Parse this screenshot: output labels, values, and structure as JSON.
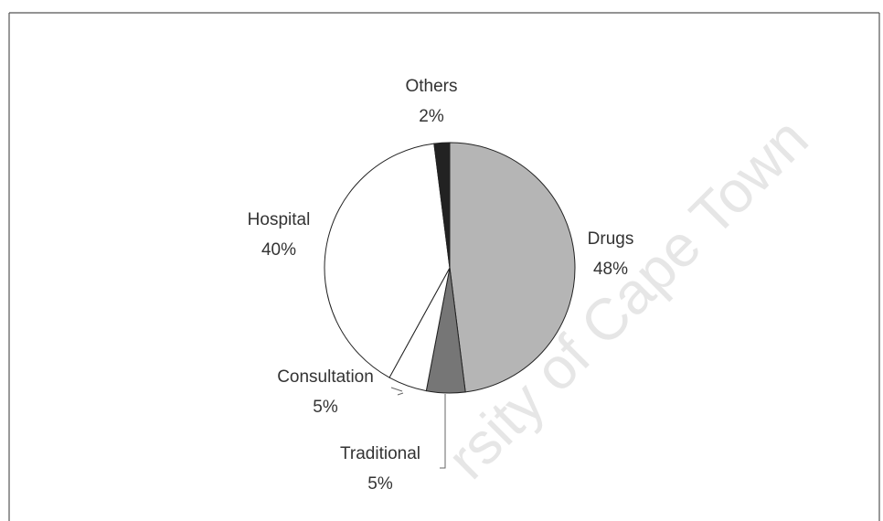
{
  "chart_data": {
    "type": "pie",
    "categories": [
      "Drugs",
      "Traditional",
      "Consultation",
      "Hospital",
      "Others"
    ],
    "values": [
      48,
      5,
      5,
      40,
      2
    ],
    "value_labels": [
      "48%",
      "5%",
      "5%",
      "40%",
      "2%"
    ],
    "colors": [
      "#b5b5b5",
      "#767676",
      "#ffffff",
      "#ffffff",
      "#222222"
    ],
    "watermark": "rsity of Cape Town"
  }
}
